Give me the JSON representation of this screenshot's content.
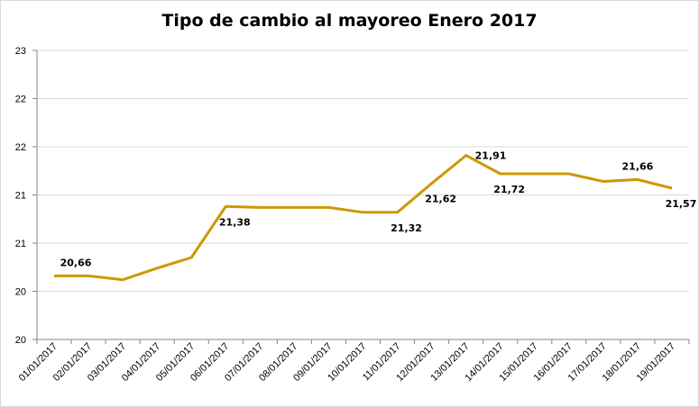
{
  "chart_data": {
    "type": "line",
    "title": "Tipo de cambio al mayoreo Enero 2017",
    "xlabel": "",
    "ylabel": "",
    "y_tick_labels": [
      "20",
      "20",
      "21",
      "21",
      "22",
      "22",
      "23"
    ],
    "ylim": [
      20.0,
      23.0
    ],
    "grid": true,
    "legend": "none",
    "line_color": "#cc9900",
    "categories": [
      "01/01/2017",
      "02/01/2017",
      "03/01/2017",
      "04/01/2017",
      "05/01/2017",
      "06/01/2017",
      "07/01/2017",
      "08/01/2017",
      "09/01/2017",
      "10/01/2017",
      "11/01/2017",
      "12/01/2017",
      "13/01/2017",
      "14/01/2017",
      "15/01/2017",
      "16/01/2017",
      "17/01/2017",
      "18/01/2017",
      "19/01/2017"
    ],
    "series": [
      {
        "values": [
          20.66,
          20.66,
          20.62,
          20.74,
          20.85,
          21.38,
          21.37,
          21.37,
          21.37,
          21.32,
          21.32,
          21.62,
          21.91,
          21.72,
          21.72,
          21.72,
          21.64,
          21.66,
          21.57
        ]
      }
    ],
    "data_labels": [
      {
        "index": 0,
        "text": "20,66",
        "pos": "above"
      },
      {
        "index": 5,
        "text": "21,38",
        "pos": "below"
      },
      {
        "index": 10,
        "text": "21,32",
        "pos": "below"
      },
      {
        "index": 11,
        "text": "21,62",
        "pos": "below"
      },
      {
        "index": 12,
        "text": "21,91",
        "pos": "right"
      },
      {
        "index": 13,
        "text": "21,72",
        "pos": "below"
      },
      {
        "index": 17,
        "text": "21,66",
        "pos": "above"
      },
      {
        "index": 18,
        "text": "21,57",
        "pos": "below"
      }
    ]
  }
}
